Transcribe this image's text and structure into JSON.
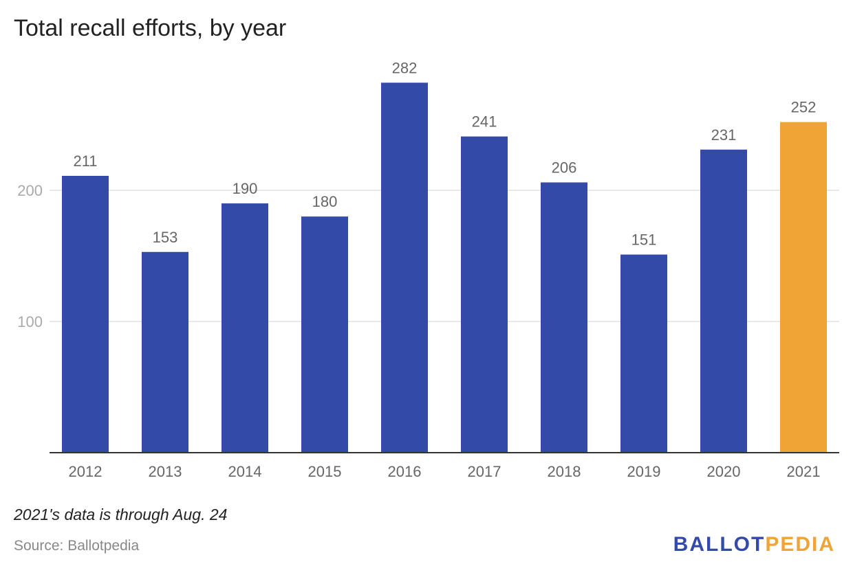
{
  "title": "Total recall efforts, by year",
  "note": "2021's data is through Aug. 24",
  "source": "Source: Ballotpedia",
  "logo": {
    "part1": "BALLOT",
    "part2": "PEDIA"
  },
  "colors": {
    "bar": "#334aa8",
    "highlight": "#f0a436",
    "grid": "#e0e0e0",
    "axis": "#333333",
    "label": "#666666",
    "tick": "#aaaaaa"
  },
  "chart_data": {
    "type": "bar",
    "title": "Total recall efforts, by year",
    "categories": [
      "2012",
      "2013",
      "2014",
      "2015",
      "2016",
      "2017",
      "2018",
      "2019",
      "2020",
      "2021"
    ],
    "values": [
      211,
      153,
      190,
      180,
      282,
      241,
      206,
      151,
      231,
      252
    ],
    "highlight_category": "2021",
    "yticks": [
      100,
      200
    ],
    "ylim": [
      0,
      300
    ],
    "grid": true,
    "xlabel": "",
    "ylabel": ""
  }
}
